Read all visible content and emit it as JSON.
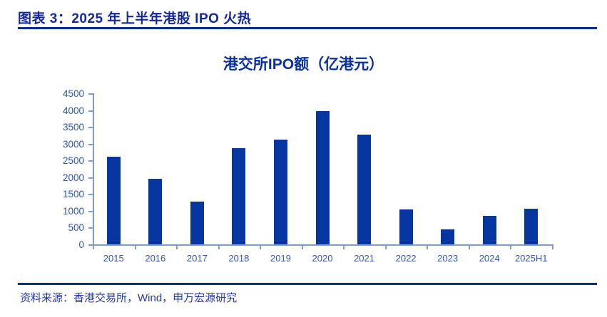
{
  "header": {
    "title": "图表 3：2025 年上半年港股 IPO 火热"
  },
  "chart_data": {
    "type": "bar",
    "title": "港交所IPO额（亿港元）",
    "categories": [
      "2015",
      "2016",
      "2017",
      "2018",
      "2019",
      "2020",
      "2021",
      "2022",
      "2023",
      "2024",
      "2025H1"
    ],
    "values": [
      2610,
      1950,
      1280,
      2860,
      3120,
      3970,
      3260,
      1030,
      450,
      850,
      1060
    ],
    "xlabel": "",
    "ylabel": "",
    "ylim": [
      0,
      4500
    ],
    "yticks": [
      0,
      500,
      1000,
      1500,
      2000,
      2500,
      3000,
      3500,
      4000,
      4500
    ],
    "grid": false,
    "legend_position": "none",
    "bar_color": "#05359E",
    "axis_color": "#7E9CD2",
    "tick_label_color": "#2C55B2"
  },
  "footer": {
    "source": "资料来源：香港交易所，Wind，申万宏源研究"
  },
  "colors": {
    "header_text": "#14289B",
    "divider": "#00308C",
    "chart_title_text": "#0A2F9E",
    "source_text": "#2438A8"
  }
}
